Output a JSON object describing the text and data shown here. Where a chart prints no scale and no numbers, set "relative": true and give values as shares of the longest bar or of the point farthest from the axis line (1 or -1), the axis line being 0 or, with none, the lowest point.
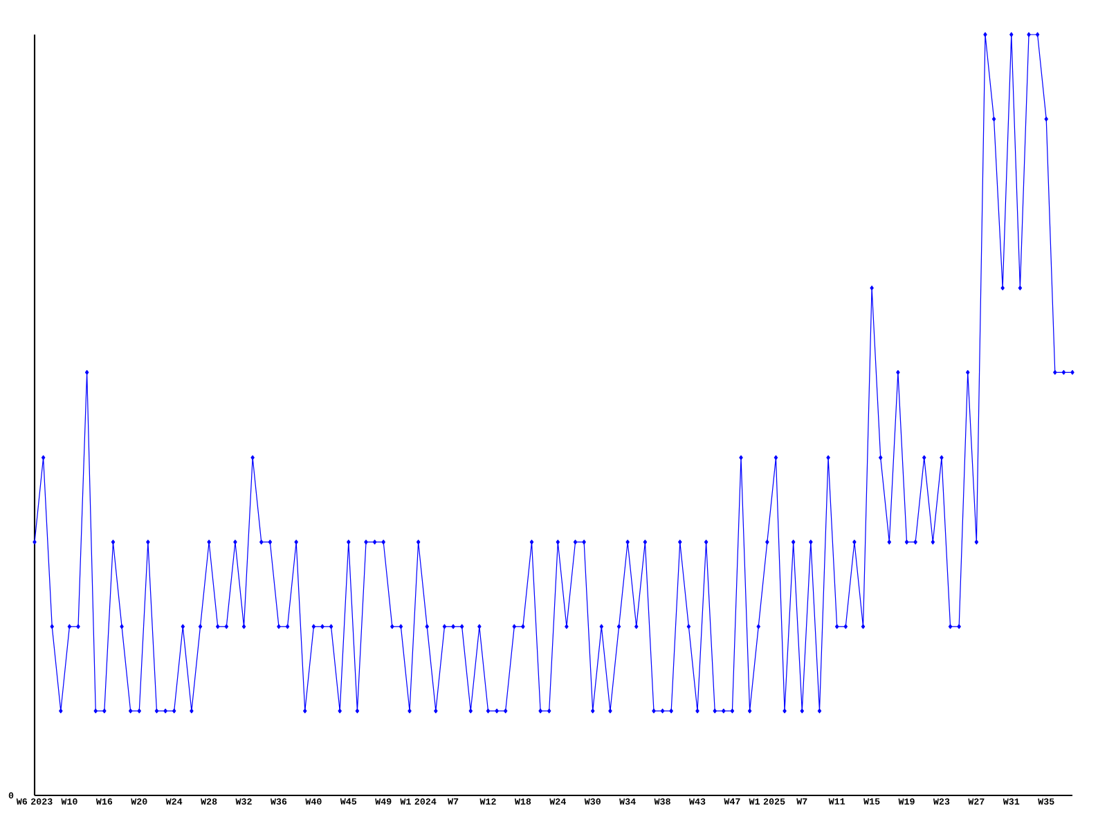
{
  "chart_data": {
    "type": "line",
    "relative": true,
    "color": "#0000ff",
    "marker": "diamond",
    "line_style": "solid",
    "grid": false,
    "annotations": [
      "0"
    ],
    "categories": [
      "W6 2023",
      null,
      null,
      null,
      "W10",
      null,
      null,
      null,
      "W16",
      null,
      null,
      null,
      "W20",
      null,
      null,
      null,
      "W24",
      null,
      null,
      null,
      "W28",
      null,
      null,
      null,
      "W32",
      null,
      null,
      null,
      "W36",
      null,
      null,
      null,
      "W40",
      null,
      null,
      null,
      "W45",
      null,
      null,
      null,
      "W49",
      null,
      null,
      null,
      "W1 2024",
      null,
      null,
      null,
      "W7",
      null,
      null,
      null,
      "W12",
      null,
      null,
      null,
      "W18",
      null,
      null,
      null,
      "W24",
      null,
      null,
      null,
      "W30",
      null,
      null,
      null,
      "W34",
      null,
      null,
      null,
      "W38",
      null,
      null,
      null,
      "W43",
      null,
      null,
      null,
      "W47",
      null,
      null,
      null,
      "W1 2025",
      null,
      null,
      null,
      "W7",
      null,
      null,
      null,
      "W11",
      null,
      null,
      null,
      "W15",
      null,
      null,
      null,
      "W19",
      null,
      null,
      null,
      "W23",
      null,
      null,
      null,
      "W27",
      null,
      null,
      null,
      "W31",
      null,
      null,
      null,
      "W35",
      null,
      null,
      null
    ],
    "values": [
      0.333,
      0.444,
      0.222,
      0.111,
      0.222,
      0.222,
      0.556,
      0.111,
      0.111,
      0.333,
      0.222,
      0.111,
      0.111,
      0.333,
      0.111,
      0.111,
      0.111,
      0.222,
      0.111,
      0.222,
      0.333,
      0.222,
      0.222,
      0.333,
      0.222,
      0.444,
      0.333,
      0.333,
      0.222,
      0.222,
      0.333,
      0.111,
      0.222,
      0.222,
      0.222,
      0.111,
      0.333,
      0.111,
      0.333,
      0.333,
      0.333,
      0.222,
      0.222,
      0.111,
      0.333,
      0.222,
      0.111,
      0.222,
      0.222,
      0.222,
      0.111,
      0.222,
      0.111,
      0.111,
      0.111,
      0.222,
      0.222,
      0.333,
      0.111,
      0.111,
      0.333,
      0.222,
      0.333,
      0.333,
      0.111,
      0.222,
      0.111,
      0.222,
      0.333,
      0.222,
      0.333,
      0.111,
      0.111,
      0.111,
      0.333,
      0.222,
      0.111,
      0.333,
      0.111,
      0.111,
      0.111,
      0.444,
      0.111,
      0.222,
      0.333,
      0.444,
      0.111,
      0.333,
      0.111,
      0.333,
      0.111,
      0.444,
      0.222,
      0.222,
      0.333,
      0.222,
      0.667,
      0.444,
      0.333,
      0.556,
      0.333,
      0.333,
      0.444,
      0.333,
      0.444,
      0.222,
      0.222,
      0.556,
      0.333,
      1,
      0.889,
      0.667,
      1,
      0.667,
      1,
      1,
      0.889,
      0.556,
      0.556,
      0.556
    ]
  }
}
